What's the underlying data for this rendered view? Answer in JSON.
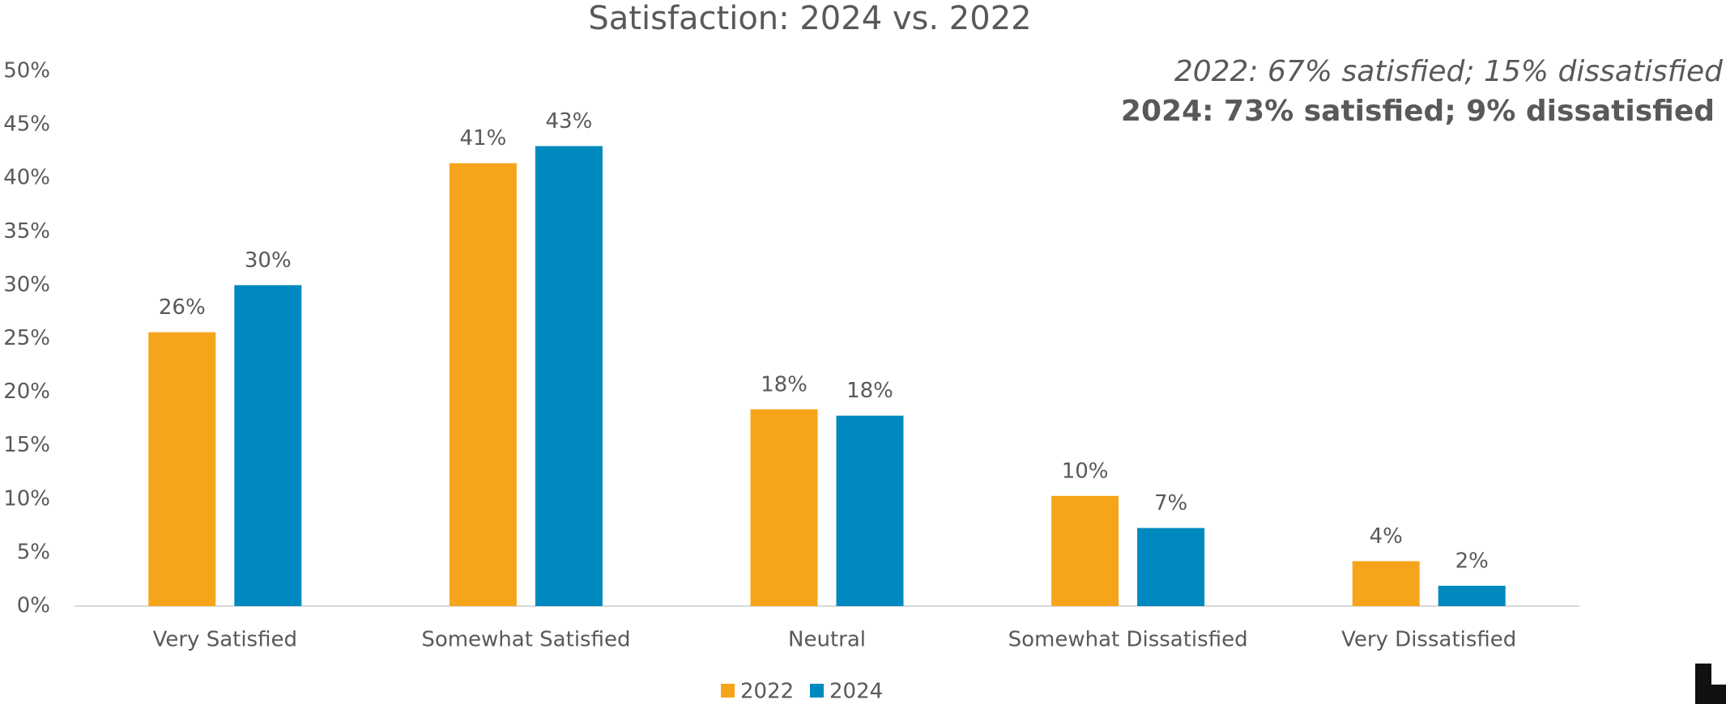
{
  "chart_data": {
    "type": "bar",
    "title": "Satisfaction: 2024 vs. 2022",
    "annotations": [
      "2022: 67% satisfied; 15% dissatisfied",
      "2024: 73% satisfied; 9% dissatisfied"
    ],
    "categories": [
      "Very Satisfied",
      "Somewhat Satisfied",
      "Neutral",
      "Somewhat Dissatisfied",
      "Very Dissatisfied"
    ],
    "series": [
      {
        "name": "2022",
        "color": "#F6A51B",
        "values": [
          25.6,
          41.4,
          18.4,
          10.3,
          4.2
        ],
        "value_labels": [
          "26%",
          "41%",
          "18%",
          "10%",
          "4%"
        ]
      },
      {
        "name": "2024",
        "color": "#0089BF",
        "values": [
          30.0,
          43.0,
          17.8,
          7.3,
          1.9
        ],
        "value_labels": [
          "30%",
          "43%",
          "18%",
          "7%",
          "2%"
        ]
      }
    ],
    "ylim": [
      0,
      50
    ],
    "yticks": [
      {
        "value": 0,
        "label": "0%"
      },
      {
        "value": 5,
        "label": "5%"
      },
      {
        "value": 10,
        "label": "10%"
      },
      {
        "value": 15,
        "label": "15%"
      },
      {
        "value": 20,
        "label": "20%"
      },
      {
        "value": 25,
        "label": "25%"
      },
      {
        "value": 30,
        "label": "30%"
      },
      {
        "value": 35,
        "label": "35%"
      },
      {
        "value": 40,
        "label": "40%"
      },
      {
        "value": 45,
        "label": "45%"
      },
      {
        "value": 50,
        "label": "50%"
      }
    ],
    "legend": "bottom"
  }
}
